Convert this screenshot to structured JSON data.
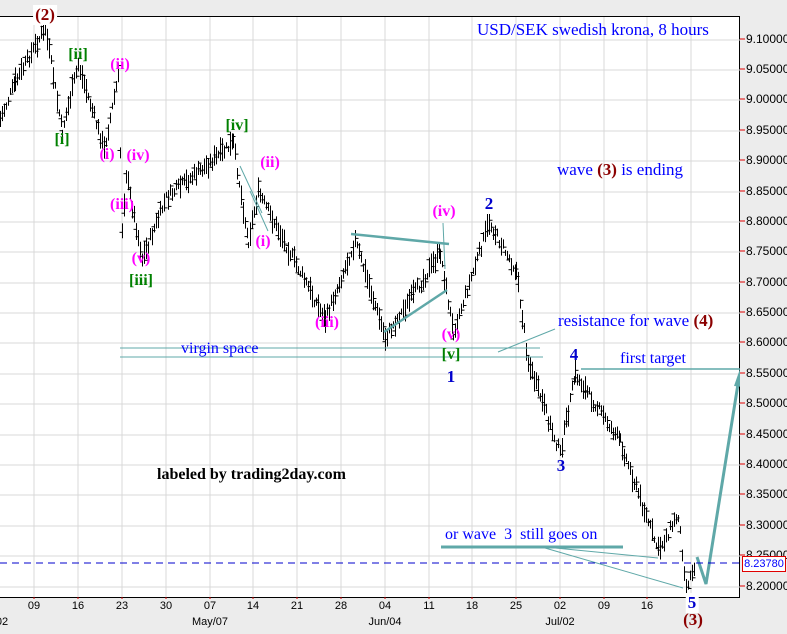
{
  "chart_data": {
    "type": "ohlc",
    "title": "USD/SEK swedish krona, 8 hours",
    "instrument": "USD/SEK",
    "timeframe": "8 hours",
    "ylabel": "",
    "xlabel": "",
    "ylim": [
      8.18,
      9.14
    ],
    "grid": true,
    "y_ticks": [
      "9.10000",
      "9.05000",
      "9.00000",
      "8.95000",
      "8.90000",
      "8.85000",
      "8.80000",
      "8.75000",
      "8.70000",
      "8.65000",
      "8.60000",
      "8.55000",
      "8.50000",
      "8.45000",
      "8.40000",
      "8.35000",
      "8.30000",
      "8.25000",
      "8.20000"
    ],
    "x_ticks": [
      "09",
      "16",
      "23",
      "30",
      "07",
      "14",
      "21",
      "28",
      "04",
      "11",
      "18",
      "25",
      "02",
      "09",
      "16"
    ],
    "x_month_labels": [
      "May/07",
      "Jun/04",
      "Jul/02"
    ],
    "x_left_partial_label": "02",
    "current_price": "8.23780",
    "price_path_approx": [
      {
        "x": "Apr 02",
        "price": 8.97
      },
      {
        "x": "Apr 05",
        "price": 9.03
      },
      {
        "x": "Apr 10",
        "price": 9.12
      },
      {
        "x": "Apr 13",
        "price": 8.95
      },
      {
        "x": "Apr 15",
        "price": 9.06
      },
      {
        "x": "Apr 20",
        "price": 8.92
      },
      {
        "x": "Apr 22",
        "price": 9.04
      },
      {
        "x": "Apr 23",
        "price": 8.79
      },
      {
        "x": "Apr 24",
        "price": 8.88
      },
      {
        "x": "Apr 26",
        "price": 8.74
      },
      {
        "x": "May 01",
        "price": 8.84
      },
      {
        "x": "May 10",
        "price": 8.93
      },
      {
        "x": "May 14",
        "price": 8.77
      },
      {
        "x": "May 15",
        "price": 8.85
      },
      {
        "x": "May 23",
        "price": 8.64
      },
      {
        "x": "May 30",
        "price": 8.77
      },
      {
        "x": "Jun 04",
        "price": 8.61
      },
      {
        "x": "Jun 11",
        "price": 8.75
      },
      {
        "x": "Jun 13",
        "price": 8.62
      },
      {
        "x": "Jun 20",
        "price": 8.8
      },
      {
        "x": "Jun 27",
        "price": 8.72
      },
      {
        "x": "Jun 29",
        "price": 8.57
      },
      {
        "x": "Jun 30",
        "price": 8.42
      },
      {
        "x": "Jul 04",
        "price": 8.55
      },
      {
        "x": "Jul 11",
        "price": 8.44
      },
      {
        "x": "Jul 18",
        "price": 8.26
      },
      {
        "x": "Jul 20",
        "price": 8.32
      },
      {
        "x": "Jul 21",
        "price": 8.2
      },
      {
        "x": "Jul 22",
        "price": 8.24
      }
    ],
    "annotations": [
      {
        "label": "(2)",
        "color": "#8b0000",
        "price": 9.12
      },
      {
        "label": "[i]",
        "color": "#008000",
        "price": 8.94
      },
      {
        "label": "[ii]",
        "color": "#008000",
        "price": 9.06
      },
      {
        "label": "(i)",
        "color": "#ff00ff",
        "price": 8.92
      },
      {
        "label": "(ii)",
        "color": "#ff00ff",
        "price": 9.04
      },
      {
        "label": "(iii)",
        "color": "#ff00ff",
        "price": 8.79
      },
      {
        "label": "(iv)",
        "color": "#ff00ff",
        "price": 8.88
      },
      {
        "label": "(v)",
        "color": "#ff00ff",
        "price": 8.74
      },
      {
        "label": "[iii]",
        "color": "#008000",
        "price": 8.74
      },
      {
        "label": "[iv]",
        "color": "#008000",
        "price": 8.93
      },
      {
        "label": "(i)",
        "color": "#ff00ff",
        "price": 8.77
      },
      {
        "label": "(ii)",
        "color": "#ff00ff",
        "price": 8.85
      },
      {
        "label": "(iii)",
        "color": "#ff00ff",
        "price": 8.64
      },
      {
        "label": "(iv)",
        "color": "#ff00ff",
        "price": 8.75
      },
      {
        "label": "(v)",
        "color": "#ff00ff",
        "price": 8.62
      },
      {
        "label": "[v]",
        "color": "#008000",
        "price": 8.62
      },
      {
        "label": "1",
        "color": "#0000cd",
        "price": 8.62
      },
      {
        "label": "2",
        "color": "#0000cd",
        "price": 8.8
      },
      {
        "label": "3",
        "color": "#0000cd",
        "price": 8.42
      },
      {
        "label": "4",
        "color": "#0000cd",
        "price": 8.55
      },
      {
        "label": "5",
        "color": "#0000cd",
        "price": 8.2
      },
      {
        "label": "(3)",
        "color": "#8b0000",
        "price": 8.2
      }
    ],
    "levels": [
      {
        "name": "virgin space upper",
        "price": 8.585
      },
      {
        "name": "virgin space lower",
        "price": 8.57
      },
      {
        "name": "first target",
        "price": 8.548
      },
      {
        "name": "current price",
        "price": 8.2378
      }
    ]
  },
  "texts": {
    "title": "USD/SEK swedish krona, 8 hours",
    "wave_ending_pre": "wave",
    "wave_ending_num": "(3)",
    "wave_ending_post": "is ending",
    "resistance_pre": "resistance for wave",
    "resistance_num": "(4)",
    "virgin_space": "virgin space",
    "first_target": "first target",
    "or_wave_3": "or wave  3  still goes on",
    "labeled_by": "labeled by trading2day.com"
  },
  "y_axis": [
    "9.10000",
    "9.05000",
    "9.00000",
    "8.95000",
    "8.90000",
    "8.85000",
    "8.80000",
    "8.75000",
    "8.70000",
    "8.65000",
    "8.60000",
    "8.55000",
    "8.50000",
    "8.45000",
    "8.40000",
    "8.35000",
    "8.30000",
    "8.25000",
    "8.20000"
  ],
  "x_axis": {
    "days": [
      "09",
      "16",
      "23",
      "30",
      "07",
      "14",
      "21",
      "28",
      "04",
      "11",
      "18",
      "25",
      "02",
      "09",
      "16"
    ],
    "months": [
      "May/07",
      "Jun/04",
      "Jul/02"
    ],
    "left_partial": "02"
  },
  "current_price_label": "8.23780",
  "wave_labels": {
    "w2_big": "(2)",
    "i_g": "[i]",
    "ii_g": "[ii]",
    "i_m1": "(i)",
    "ii_m1": "(ii)",
    "iii_m1": "(iii)",
    "iv_m1": "(iv)",
    "v_m1": "(v)",
    "iii_g": "[iii]",
    "iv_g": "[iv]",
    "i_m2": "(i)",
    "ii_m2": "(ii)",
    "iii_m2": "(iii)",
    "iv_m2": "(iv)",
    "v_m2": "(v)",
    "v_g": "[v]",
    "w1": "1",
    "w2": "2",
    "w3": "3",
    "w4": "4",
    "w5": "5",
    "w3_big": "(3)"
  },
  "colors": {
    "wave_big": "#8b0000",
    "wave_green": "#008000",
    "wave_magenta": "#ff00ff",
    "wave_blue": "#0000cd",
    "text_blue": "#0000ff",
    "teal": "#5fa8a8",
    "grid": "#d8d8d8"
  }
}
